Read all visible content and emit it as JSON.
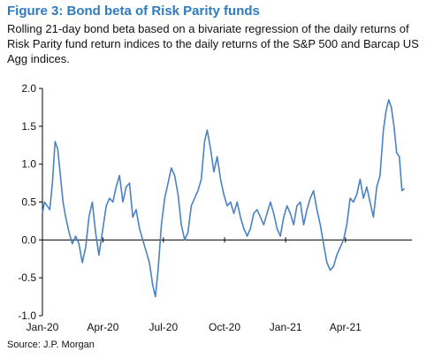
{
  "figure": {
    "title": "Figure 3: Bond beta of Risk Parity funds",
    "subtitle": "Rolling 21-day bond beta based on a bivariate regression of the daily returns of Risk Parity fund return indices to the daily returns of the S&P 500 and Barcap US Agg indices.",
    "source": "Source: J.P. Morgan"
  },
  "colors": {
    "line": "#4a82c4",
    "axis": "#000000"
  },
  "chart_data": {
    "type": "line",
    "title": "Figure 3: Bond beta of Risk Parity funds",
    "xlabel": "",
    "ylabel": "",
    "ylim": [
      -1.0,
      2.0
    ],
    "xlim": [
      "2020-01-01",
      "2021-07-10"
    ],
    "yticks": [
      {
        "value": 2.0,
        "label": "2.0"
      },
      {
        "value": 1.5,
        "label": "1.5"
      },
      {
        "value": 1.0,
        "label": "1.0"
      },
      {
        "value": 0.5,
        "label": "0.5"
      },
      {
        "value": 0.0,
        "label": "0.0"
      },
      {
        "value": -0.5,
        "label": "-0.5"
      },
      {
        "value": -1.0,
        "label": "-1.0"
      }
    ],
    "xticks": [
      {
        "date": "2020-01-01",
        "label": "Jan-20"
      },
      {
        "date": "2020-04-01",
        "label": "Apr-20"
      },
      {
        "date": "2020-07-01",
        "label": "Jul-20"
      },
      {
        "date": "2020-10-01",
        "label": "Oct-20"
      },
      {
        "date": "2021-01-01",
        "label": "Jan-21"
      },
      {
        "date": "2021-04-01",
        "label": "Apr-21"
      }
    ],
    "grid": false,
    "legend": "none",
    "series": [
      {
        "points": [
          [
            "2020-01-01",
            0.35
          ],
          [
            "2020-01-04",
            0.5
          ],
          [
            "2020-01-08",
            0.45
          ],
          [
            "2020-01-12",
            0.4
          ],
          [
            "2020-01-16",
            0.75
          ],
          [
            "2020-01-20",
            1.3
          ],
          [
            "2020-01-24",
            1.2
          ],
          [
            "2020-01-28",
            0.85
          ],
          [
            "2020-02-01",
            0.5
          ],
          [
            "2020-02-05",
            0.3
          ],
          [
            "2020-02-10",
            0.1
          ],
          [
            "2020-02-15",
            -0.05
          ],
          [
            "2020-02-20",
            0.05
          ],
          [
            "2020-02-25",
            -0.05
          ],
          [
            "2020-03-01",
            -0.3
          ],
          [
            "2020-03-06",
            -0.1
          ],
          [
            "2020-03-11",
            0.3
          ],
          [
            "2020-03-16",
            0.5
          ],
          [
            "2020-03-21",
            0.1
          ],
          [
            "2020-03-26",
            -0.2
          ],
          [
            "2020-04-01",
            0.15
          ],
          [
            "2020-04-06",
            0.45
          ],
          [
            "2020-04-11",
            0.55
          ],
          [
            "2020-04-16",
            0.5
          ],
          [
            "2020-04-21",
            0.7
          ],
          [
            "2020-04-26",
            0.85
          ],
          [
            "2020-05-01",
            0.5
          ],
          [
            "2020-05-06",
            0.7
          ],
          [
            "2020-05-11",
            0.75
          ],
          [
            "2020-05-16",
            0.3
          ],
          [
            "2020-05-21",
            0.4
          ],
          [
            "2020-05-26",
            0.15
          ],
          [
            "2020-05-31",
            0.0
          ],
          [
            "2020-06-05",
            -0.15
          ],
          [
            "2020-06-10",
            -0.3
          ],
          [
            "2020-06-15",
            -0.6
          ],
          [
            "2020-06-19",
            -0.75
          ],
          [
            "2020-06-23",
            -0.4
          ],
          [
            "2020-06-28",
            0.2
          ],
          [
            "2020-07-03",
            0.55
          ],
          [
            "2020-07-08",
            0.75
          ],
          [
            "2020-07-13",
            0.95
          ],
          [
            "2020-07-18",
            0.85
          ],
          [
            "2020-07-23",
            0.6
          ],
          [
            "2020-07-28",
            0.2
          ],
          [
            "2020-08-02",
            0.0
          ],
          [
            "2020-08-07",
            0.1
          ],
          [
            "2020-08-12",
            0.45
          ],
          [
            "2020-08-17",
            0.55
          ],
          [
            "2020-08-22",
            0.65
          ],
          [
            "2020-08-27",
            0.8
          ],
          [
            "2020-09-01",
            1.3
          ],
          [
            "2020-09-05",
            1.45
          ],
          [
            "2020-09-10",
            1.2
          ],
          [
            "2020-09-15",
            0.9
          ],
          [
            "2020-09-20",
            1.1
          ],
          [
            "2020-09-25",
            0.8
          ],
          [
            "2020-09-30",
            0.6
          ],
          [
            "2020-10-05",
            0.45
          ],
          [
            "2020-10-10",
            0.5
          ],
          [
            "2020-10-15",
            0.35
          ],
          [
            "2020-10-20",
            0.5
          ],
          [
            "2020-10-25",
            0.3
          ],
          [
            "2020-10-30",
            0.15
          ],
          [
            "2020-11-04",
            0.05
          ],
          [
            "2020-11-09",
            0.15
          ],
          [
            "2020-11-14",
            0.35
          ],
          [
            "2020-11-19",
            0.4
          ],
          [
            "2020-11-24",
            0.3
          ],
          [
            "2020-11-29",
            0.2
          ],
          [
            "2020-12-04",
            0.35
          ],
          [
            "2020-12-09",
            0.5
          ],
          [
            "2020-12-14",
            0.35
          ],
          [
            "2020-12-19",
            0.15
          ],
          [
            "2020-12-24",
            0.05
          ],
          [
            "2020-12-29",
            0.3
          ],
          [
            "2021-01-03",
            0.45
          ],
          [
            "2021-01-08",
            0.35
          ],
          [
            "2021-01-13",
            0.2
          ],
          [
            "2021-01-18",
            0.45
          ],
          [
            "2021-01-23",
            0.5
          ],
          [
            "2021-01-28",
            0.2
          ],
          [
            "2021-02-02",
            0.4
          ],
          [
            "2021-02-07",
            0.55
          ],
          [
            "2021-02-12",
            0.65
          ],
          [
            "2021-02-17",
            0.4
          ],
          [
            "2021-02-22",
            0.2
          ],
          [
            "2021-02-27",
            -0.05
          ],
          [
            "2021-03-04",
            -0.3
          ],
          [
            "2021-03-09",
            -0.4
          ],
          [
            "2021-03-14",
            -0.35
          ],
          [
            "2021-03-19",
            -0.2
          ],
          [
            "2021-03-24",
            -0.1
          ],
          [
            "2021-03-29",
            0.0
          ],
          [
            "2021-04-03",
            0.2
          ],
          [
            "2021-04-08",
            0.55
          ],
          [
            "2021-04-13",
            0.5
          ],
          [
            "2021-04-18",
            0.6
          ],
          [
            "2021-04-23",
            0.8
          ],
          [
            "2021-04-28",
            0.55
          ],
          [
            "2021-05-03",
            0.7
          ],
          [
            "2021-05-08",
            0.5
          ],
          [
            "2021-05-13",
            0.3
          ],
          [
            "2021-05-18",
            0.7
          ],
          [
            "2021-05-23",
            0.85
          ],
          [
            "2021-05-28",
            1.45
          ],
          [
            "2021-06-01",
            1.7
          ],
          [
            "2021-06-05",
            1.85
          ],
          [
            "2021-06-09",
            1.75
          ],
          [
            "2021-06-13",
            1.5
          ],
          [
            "2021-06-17",
            1.15
          ],
          [
            "2021-06-21",
            1.1
          ],
          [
            "2021-06-25",
            0.65
          ],
          [
            "2021-06-29",
            0.68
          ]
        ]
      }
    ]
  }
}
